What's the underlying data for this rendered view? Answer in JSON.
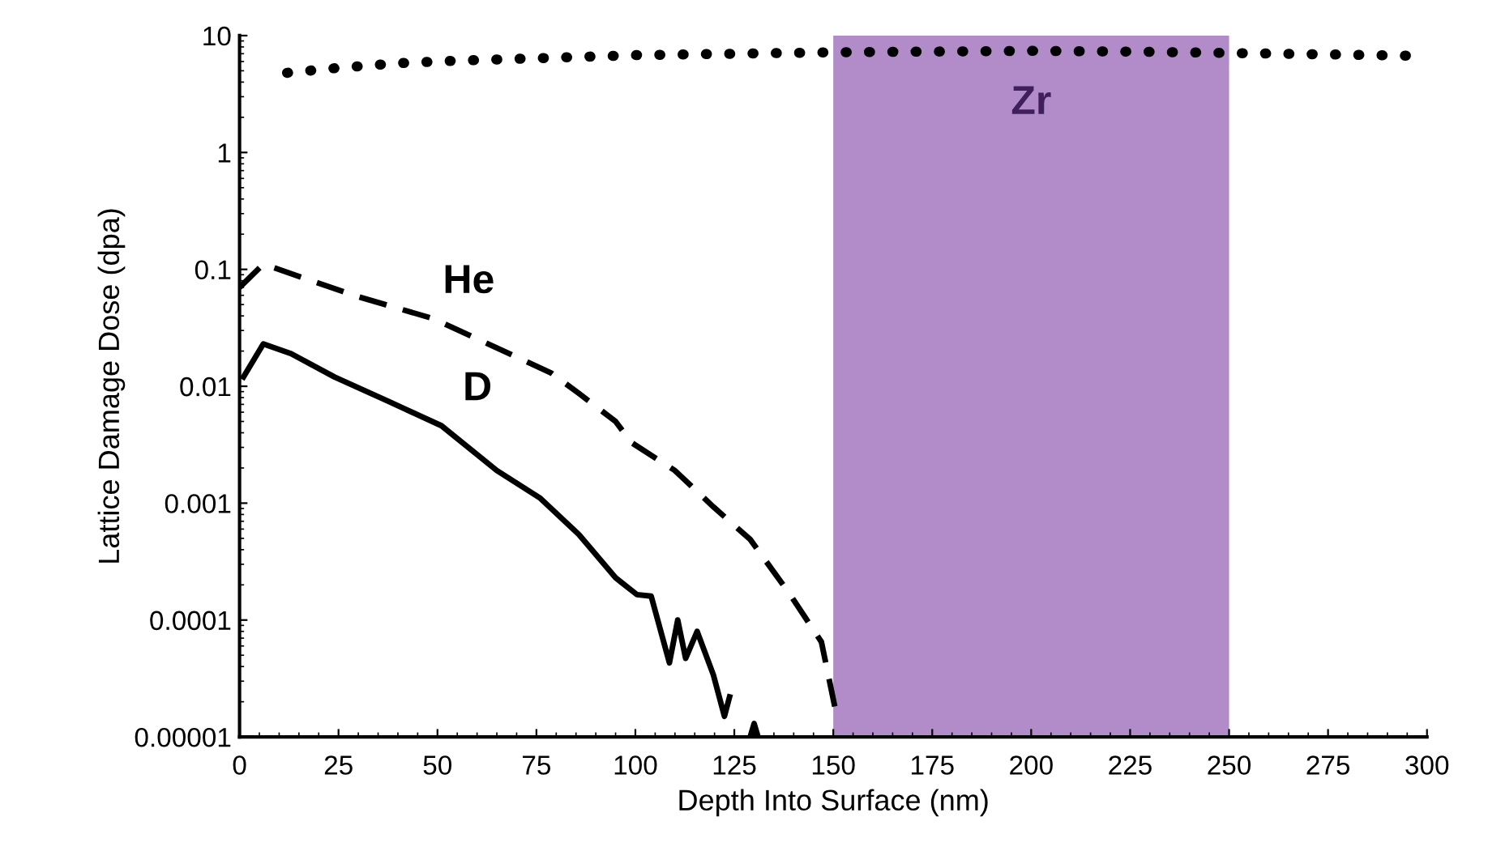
{
  "chart_data": {
    "type": "line",
    "xlabel": "Depth Into Surface (nm)",
    "ylabel": "Lattice Damage Dose (dpa)",
    "log": "y",
    "xlim": [
      0,
      300
    ],
    "ylim": [
      1e-05,
      10
    ],
    "xticks": [
      0,
      25,
      50,
      75,
      100,
      125,
      150,
      175,
      200,
      225,
      250,
      275,
      300
    ],
    "yticks": [
      {
        "value": 1e-05,
        "label": "0.00001"
      },
      {
        "value": 0.0001,
        "label": "0.0001"
      },
      {
        "value": 0.001,
        "label": "0.001"
      },
      {
        "value": 0.01,
        "label": "0.01"
      },
      {
        "value": 0.1,
        "label": "0.1"
      },
      {
        "value": 1,
        "label": "1"
      },
      {
        "value": 10,
        "label": "10"
      }
    ],
    "grid": false,
    "legend": false,
    "series": [
      {
        "color": "#000000",
        "line_style": "dotted",
        "x": [
          12,
          25,
          40,
          55,
          75,
          100,
          125,
          150,
          175,
          200,
          225,
          250,
          275,
          300
        ],
        "values": [
          4.8,
          5.3,
          5.8,
          6.1,
          6.4,
          6.8,
          7.0,
          7.2,
          7.3,
          7.4,
          7.3,
          7.1,
          6.9,
          6.7
        ]
      },
      {
        "name": "He",
        "color": "#000000",
        "line_style": "dashed",
        "x": [
          0,
          6,
          29.5,
          48.8,
          59.4,
          78.7,
          85.7,
          95,
          99,
          110,
          119.7,
          129,
          139,
          147,
          150.4
        ],
        "values": [
          0.07,
          0.111,
          0.059,
          0.038,
          0.026,
          0.013,
          0.0087,
          0.005,
          0.0033,
          0.0019,
          0.00093,
          0.00049,
          0.000167,
          6.5e-05,
          1.8e-05
        ]
      },
      {
        "name": "D",
        "color": "#000000",
        "line_style": "solid",
        "x": [
          1,
          6,
          13,
          24,
          37.7,
          51,
          65,
          76,
          85.7,
          95,
          100.4,
          104,
          108.6,
          110.7,
          112.7,
          115.6,
          119.7,
          122.5,
          123.8,
          126,
          129,
          130,
          131
        ],
        "values": [
          0.012,
          0.023,
          0.019,
          0.012,
          0.0074,
          0.0046,
          0.0019,
          0.0011,
          0.00054,
          0.00023,
          0.000165,
          0.00016,
          4.3e-05,
          0.0001,
          4.7e-05,
          8e-05,
          3.4e-05,
          1.5e-05,
          2.2e-05,
          null,
          1e-05,
          1.3e-05,
          1e-05
        ]
      }
    ],
    "bands": [
      {
        "axis": "x",
        "from": 150,
        "to": 250,
        "label": "Zr",
        "color": "#b18cc9"
      }
    ]
  }
}
